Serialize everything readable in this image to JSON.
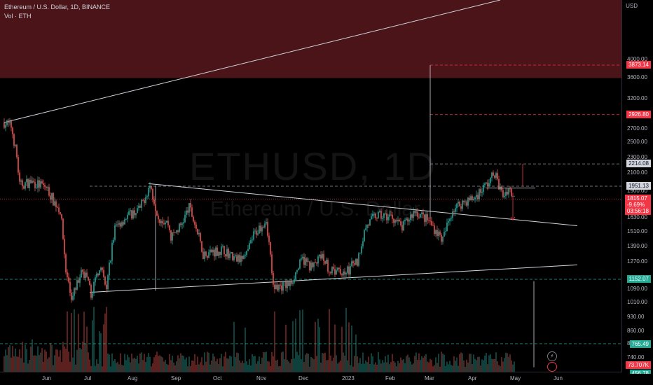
{
  "header": {
    "symbol_line": "Ethereum / U.S. Dollar, 1D, BINANCE",
    "volume_line": "Vol · ETH"
  },
  "watermark": {
    "symbol": "ETHUSD, 1D",
    "description": "Ethereum / U.S. Dollar"
  },
  "price_scale": {
    "currency": "USD",
    "ticks": [
      "4000.00",
      "3600.00",
      "3200.00",
      "2700.00",
      "2500.00",
      "2300.00",
      "2100.00",
      "1900.00",
      "1630.00",
      "1510.00",
      "1390.00",
      "1270.00",
      "1090.00",
      "1010.00",
      "930.00",
      "860.00",
      "800.00",
      "740.00"
    ],
    "tags": {
      "target_high": "3873.14",
      "target_mid": "2926.80",
      "level_2214": "2214.08",
      "level_1951": "1951.13",
      "current_price": "1815.07",
      "current_change": "-9.69%",
      "countdown": "03:56:18",
      "support": "1152.07",
      "volume_ref": "765.49",
      "volume_current": "73.707K",
      "volume_partial": "456.78"
    }
  },
  "time_scale": {
    "labels": [
      "Jun",
      "Jul",
      "Aug",
      "Sep",
      "Oct",
      "Nov",
      "Dec",
      "2023",
      "Feb",
      "Mar",
      "Apr",
      "May",
      "Jun"
    ]
  },
  "colors": {
    "up": "#26a69a",
    "down": "#ef5350",
    "zone": "#4a1418",
    "trendline": "#d1d4dc",
    "dashed_red": "#f23645",
    "dashed_gray": "#9598a1",
    "support_dash": "#22ab94"
  },
  "chart_data": {
    "type": "candlestick",
    "title": "Ethereum / U.S. Dollar, 1D, BINANCE",
    "ylabel": "USD",
    "log_scale": true,
    "x_range": [
      "2022-05-01",
      "2023-06-15"
    ],
    "y_range": [
      680,
      5600
    ],
    "resistance_zone": [
      3600,
      5600
    ],
    "horizontal_levels": [
      3873.14,
      2926.8,
      2214.08,
      1951.13,
      1815.07,
      1152.07
    ],
    "current_price": 1815.07,
    "current_change_pct": -9.69,
    "anchor_path": [
      [
        "2022-05-01",
        2800
      ],
      [
        "2022-05-06",
        2740
      ],
      [
        "2022-05-10",
        2300
      ],
      [
        "2022-05-12",
        1960
      ],
      [
        "2022-05-20",
        2000
      ],
      [
        "2022-05-31",
        1940
      ],
      [
        "2022-06-05",
        1800
      ],
      [
        "2022-06-10",
        1700
      ],
      [
        "2022-06-14",
        1210
      ],
      [
        "2022-06-18",
        1000
      ],
      [
        "2022-06-20",
        1090
      ],
      [
        "2022-06-26",
        1220
      ],
      [
        "2022-07-02",
        1060
      ],
      [
        "2022-07-08",
        1240
      ],
      [
        "2022-07-13",
        1090
      ],
      [
        "2022-07-19",
        1540
      ],
      [
        "2022-07-27",
        1640
      ],
      [
        "2022-08-06",
        1720
      ],
      [
        "2022-08-13",
        1960
      ],
      [
        "2022-08-19",
        1640
      ],
      [
        "2022-08-26",
        1580
      ],
      [
        "2022-08-28",
        1460
      ],
      [
        "2022-09-04",
        1560
      ],
      [
        "2022-09-10",
        1730
      ],
      [
        "2022-09-14",
        1580
      ],
      [
        "2022-09-20",
        1330
      ],
      [
        "2022-09-27",
        1350
      ],
      [
        "2022-10-05",
        1360
      ],
      [
        "2022-10-13",
        1290
      ],
      [
        "2022-10-20",
        1290
      ],
      [
        "2022-10-26",
        1480
      ],
      [
        "2022-11-04",
        1620
      ],
      [
        "2022-11-09",
        1100
      ],
      [
        "2022-11-21",
        1120
      ],
      [
        "2022-11-30",
        1290
      ],
      [
        "2022-12-07",
        1230
      ],
      [
        "2022-12-14",
        1320
      ],
      [
        "2022-12-20",
        1200
      ],
      [
        "2022-12-31",
        1200
      ],
      [
        "2023-01-08",
        1280
      ],
      [
        "2023-01-14",
        1550
      ],
      [
        "2023-01-21",
        1650
      ],
      [
        "2023-02-02",
        1640
      ],
      [
        "2023-02-09",
        1540
      ],
      [
        "2023-02-18",
        1700
      ],
      [
        "2023-02-28",
        1600
      ],
      [
        "2023-03-10",
        1440
      ],
      [
        "2023-03-17",
        1710
      ],
      [
        "2023-03-24",
        1780
      ],
      [
        "2023-04-01",
        1820
      ],
      [
        "2023-04-12",
        2000
      ],
      [
        "2023-04-16",
        2110
      ],
      [
        "2023-04-19",
        1950
      ],
      [
        "2023-04-22",
        1850
      ],
      [
        "2023-04-26",
        1930
      ],
      [
        "2023-04-30",
        1820
      ]
    ],
    "trendlines": [
      {
        "name": "",
        "points": [
          [
            "2022-05-01",
            2800
          ],
          [
            "2023-04-20",
            5600
          ]
        ]
      },
      {
        "name": "",
        "points": [
          [
            "2022-08-12",
            1980
          ],
          [
            "2023-06-14",
            1560
          ]
        ]
      },
      {
        "name": "",
        "points": [
          [
            "2022-07-01",
            1070
          ],
          [
            "2023-06-14",
            1250
          ]
        ]
      }
    ],
    "projections": [
      {
        "from": [
          "2023-03-01",
          1600
        ],
        "to": [
          "2023-03-01",
          3873.14
        ]
      },
      {
        "from": [
          "2023-05-14",
          1140
        ],
        "to": [
          "2023-05-14",
          700
        ]
      }
    ]
  }
}
